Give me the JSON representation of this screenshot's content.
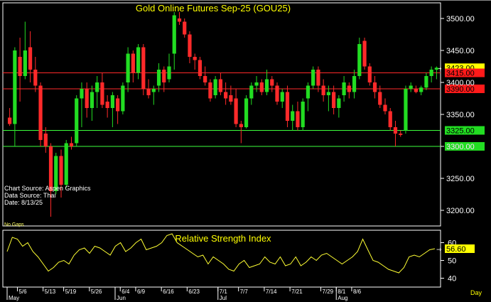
{
  "chart_data": {
    "type": "candlestick",
    "title": "Gold Online Futures Sep-25 (GOU25)",
    "y_axis": {
      "range": [
        3180,
        3520
      ],
      "ticks": [
        3200,
        3250,
        3300,
        3350,
        3400,
        3450,
        3500
      ],
      "labels": [
        "3200.00",
        "3250.00",
        "3300.00",
        "3350.00",
        "3400.00",
        "3450.00",
        "3500.00"
      ]
    },
    "x_axis": {
      "ticks": [
        {
          "label": "5/6",
          "day": 2
        },
        {
          "label": "5/13",
          "day": 7
        },
        {
          "label": "5/19",
          "day": 11
        },
        {
          "label": "5/26",
          "day": 16
        },
        {
          "label": "6/4",
          "day": 22
        },
        {
          "label": "6/9",
          "day": 25
        },
        {
          "label": "6/16",
          "day": 30
        },
        {
          "label": "6/23",
          "day": 35
        },
        {
          "label": "7/1",
          "day": 41
        },
        {
          "label": "7/7",
          "day": 45
        },
        {
          "label": "7/14",
          "day": 50
        },
        {
          "label": "7/21",
          "day": 55
        },
        {
          "label": "7/29",
          "day": 61
        },
        {
          "label": "8/1",
          "day": 64
        },
        {
          "label": "8/6",
          "day": 67
        }
      ],
      "months": [
        {
          "label": "May",
          "day": 0
        },
        {
          "label": "Jun",
          "day": 21
        },
        {
          "label": "Jul",
          "day": 41
        },
        {
          "label": "Aug",
          "day": 64
        }
      ],
      "period_label": "Day"
    },
    "candles": [
      {
        "o": 3345,
        "h": 3360,
        "l": 3332,
        "c": 3335
      },
      {
        "o": 3335,
        "h": 3455,
        "l": 3300,
        "c": 3450
      },
      {
        "o": 3440,
        "h": 3470,
        "l": 3370,
        "c": 3410
      },
      {
        "o": 3410,
        "h": 3495,
        "l": 3405,
        "c": 3450
      },
      {
        "o": 3455,
        "h": 3480,
        "l": 3400,
        "c": 3420
      },
      {
        "o": 3420,
        "h": 3440,
        "l": 3385,
        "c": 3395
      },
      {
        "o": 3395,
        "h": 3400,
        "l": 3300,
        "c": 3310
      },
      {
        "o": 3320,
        "h": 3330,
        "l": 3290,
        "c": 3300
      },
      {
        "o": 3300,
        "h": 3305,
        "l": 3190,
        "c": 3230
      },
      {
        "o": 3230,
        "h": 3290,
        "l": 3225,
        "c": 3285
      },
      {
        "o": 3285,
        "h": 3295,
        "l": 3220,
        "c": 3240
      },
      {
        "o": 3240,
        "h": 3310,
        "l": 3235,
        "c": 3305
      },
      {
        "o": 3305,
        "h": 3315,
        "l": 3295,
        "c": 3300
      },
      {
        "o": 3305,
        "h": 3380,
        "l": 3300,
        "c": 3375
      },
      {
        "o": 3375,
        "h": 3400,
        "l": 3330,
        "c": 3390
      },
      {
        "o": 3390,
        "h": 3400,
        "l": 3345,
        "c": 3360
      },
      {
        "o": 3360,
        "h": 3395,
        "l": 3340,
        "c": 3385
      },
      {
        "o": 3385,
        "h": 3410,
        "l": 3360,
        "c": 3400
      },
      {
        "o": 3400,
        "h": 3415,
        "l": 3360,
        "c": 3365
      },
      {
        "o": 3370,
        "h": 3380,
        "l": 3345,
        "c": 3360
      },
      {
        "o": 3360,
        "h": 3385,
        "l": 3330,
        "c": 3380
      },
      {
        "o": 3375,
        "h": 3380,
        "l": 3335,
        "c": 3355
      },
      {
        "o": 3355,
        "h": 3400,
        "l": 3350,
        "c": 3395
      },
      {
        "o": 3400,
        "h": 3455,
        "l": 3385,
        "c": 3445
      },
      {
        "o": 3445,
        "h": 3450,
        "l": 3400,
        "c": 3415
      },
      {
        "o": 3415,
        "h": 3460,
        "l": 3405,
        "c": 3455
      },
      {
        "o": 3455,
        "h": 3460,
        "l": 3380,
        "c": 3390
      },
      {
        "o": 3390,
        "h": 3405,
        "l": 3375,
        "c": 3380
      },
      {
        "o": 3385,
        "h": 3395,
        "l": 3365,
        "c": 3390
      },
      {
        "o": 3395,
        "h": 3430,
        "l": 3385,
        "c": 3420
      },
      {
        "o": 3420,
        "h": 3425,
        "l": 3385,
        "c": 3400
      },
      {
        "o": 3405,
        "h": 3445,
        "l": 3400,
        "c": 3425
      },
      {
        "o": 3445,
        "h": 3510,
        "l": 3420,
        "c": 3505
      },
      {
        "o": 3500,
        "h": 3510,
        "l": 3490,
        "c": 3495
      },
      {
        "o": 3495,
        "h": 3500,
        "l": 3470,
        "c": 3475
      },
      {
        "o": 3475,
        "h": 3480,
        "l": 3430,
        "c": 3440
      },
      {
        "o": 3440,
        "h": 3445,
        "l": 3420,
        "c": 3435
      },
      {
        "o": 3435,
        "h": 3440,
        "l": 3405,
        "c": 3410
      },
      {
        "o": 3410,
        "h": 3425,
        "l": 3395,
        "c": 3400
      },
      {
        "o": 3400,
        "h": 3405,
        "l": 3370,
        "c": 3375
      },
      {
        "o": 3380,
        "h": 3410,
        "l": 3375,
        "c": 3405
      },
      {
        "o": 3405,
        "h": 3415,
        "l": 3380,
        "c": 3385
      },
      {
        "o": 3385,
        "h": 3400,
        "l": 3365,
        "c": 3375
      },
      {
        "o": 3380,
        "h": 3395,
        "l": 3365,
        "c": 3370
      },
      {
        "o": 3375,
        "h": 3390,
        "l": 3330,
        "c": 3335
      },
      {
        "o": 3335,
        "h": 3340,
        "l": 3305,
        "c": 3330
      },
      {
        "o": 3330,
        "h": 3380,
        "l": 3328,
        "c": 3375
      },
      {
        "o": 3375,
        "h": 3400,
        "l": 3365,
        "c": 3395
      },
      {
        "o": 3395,
        "h": 3410,
        "l": 3385,
        "c": 3400
      },
      {
        "o": 3400,
        "h": 3405,
        "l": 3380,
        "c": 3385
      },
      {
        "o": 3385,
        "h": 3420,
        "l": 3380,
        "c": 3405
      },
      {
        "o": 3405,
        "h": 3410,
        "l": 3385,
        "c": 3395
      },
      {
        "o": 3395,
        "h": 3400,
        "l": 3365,
        "c": 3370
      },
      {
        "o": 3370,
        "h": 3390,
        "l": 3360,
        "c": 3385
      },
      {
        "o": 3385,
        "h": 3395,
        "l": 3330,
        "c": 3340
      },
      {
        "o": 3340,
        "h": 3365,
        "l": 3325,
        "c": 3355
      },
      {
        "o": 3355,
        "h": 3370,
        "l": 3325,
        "c": 3330
      },
      {
        "o": 3330,
        "h": 3375,
        "l": 3325,
        "c": 3370
      },
      {
        "o": 3375,
        "h": 3400,
        "l": 3355,
        "c": 3395
      },
      {
        "o": 3395,
        "h": 3425,
        "l": 3390,
        "c": 3420
      },
      {
        "o": 3420,
        "h": 3425,
        "l": 3385,
        "c": 3395
      },
      {
        "o": 3395,
        "h": 3405,
        "l": 3370,
        "c": 3380
      },
      {
        "o": 3380,
        "h": 3395,
        "l": 3355,
        "c": 3385
      },
      {
        "o": 3385,
        "h": 3395,
        "l": 3350,
        "c": 3360
      },
      {
        "o": 3360,
        "h": 3380,
        "l": 3345,
        "c": 3375
      },
      {
        "o": 3380,
        "h": 3410,
        "l": 3370,
        "c": 3400
      },
      {
        "o": 3395,
        "h": 3400,
        "l": 3375,
        "c": 3385
      },
      {
        "o": 3385,
        "h": 3420,
        "l": 3375,
        "c": 3410
      },
      {
        "o": 3410,
        "h": 3470,
        "l": 3405,
        "c": 3460
      },
      {
        "o": 3465,
        "h": 3470,
        "l": 3420,
        "c": 3425
      },
      {
        "o": 3425,
        "h": 3430,
        "l": 3395,
        "c": 3400
      },
      {
        "o": 3400,
        "h": 3410,
        "l": 3375,
        "c": 3385
      },
      {
        "o": 3385,
        "h": 3395,
        "l": 3360,
        "c": 3365
      },
      {
        "o": 3365,
        "h": 3375,
        "l": 3350,
        "c": 3355
      },
      {
        "o": 3355,
        "h": 3360,
        "l": 3325,
        "c": 3330
      },
      {
        "o": 3330,
        "h": 3340,
        "l": 3300,
        "c": 3320
      },
      {
        "o": 3320,
        "h": 3325,
        "l": 3315,
        "c": 3318
      },
      {
        "o": 3325,
        "h": 3395,
        "l": 3320,
        "c": 3390
      },
      {
        "o": 3390,
        "h": 3400,
        "l": 3385,
        "c": 3395
      },
      {
        "o": 3390,
        "h": 3395,
        "l": 3383,
        "c": 3385
      },
      {
        "o": 3385,
        "h": 3395,
        "l": 3380,
        "c": 3392
      },
      {
        "o": 3392,
        "h": 3415,
        "l": 3388,
        "c": 3410
      },
      {
        "o": 3410,
        "h": 3425,
        "l": 3400,
        "c": 3420
      },
      {
        "o": 3420,
        "h": 3425,
        "l": 3405,
        "c": 3423
      }
    ],
    "levels": [
      {
        "value": 3423.0,
        "label": "3423.00",
        "line_color": "",
        "label_bg": "#ffff00",
        "label_fg": "#000000"
      },
      {
        "value": 3415.0,
        "label": "3415.00",
        "line_color": "#ff2a2a",
        "label_bg": "#ff1a1a",
        "label_fg": "#000000"
      },
      {
        "value": 3390.0,
        "label": "3390.00",
        "line_color": "#ff2a2a",
        "label_bg": "#ff1a1a",
        "label_fg": "#000000"
      },
      {
        "value": 3325.0,
        "label": "3325.00",
        "line_color": "#3cff3c",
        "label_bg": "#22dd22",
        "label_fg": "#000000"
      },
      {
        "value": 3300.0,
        "label": "3300.00",
        "line_color": "#3cff3c",
        "label_bg": "#22dd22",
        "label_fg": "#000000"
      }
    ],
    "rsi": {
      "title": "Relative Strength Index",
      "y_range": [
        35,
        67
      ],
      "ticks": [
        40,
        50,
        60
      ],
      "last_value": 56.6,
      "last_label": "56.60",
      "values": [
        55,
        63,
        62,
        58,
        60,
        55,
        52,
        48,
        44,
        46,
        49,
        50,
        48,
        53,
        56,
        57,
        54,
        58,
        57,
        55,
        53,
        58,
        60,
        55,
        57,
        60,
        62,
        56,
        57,
        58,
        60,
        64,
        65,
        60,
        58,
        56,
        54,
        52,
        53,
        48,
        52,
        50,
        48,
        45,
        44,
        48,
        50,
        46,
        47,
        48,
        52,
        49,
        48,
        52,
        47,
        48,
        52,
        47,
        49,
        52,
        50,
        53,
        54,
        52,
        50,
        48,
        50,
        52,
        55,
        62,
        56,
        50,
        49,
        47,
        45,
        44,
        43,
        46,
        52,
        53,
        52,
        54,
        56,
        56.6
      ]
    },
    "info": {
      "chart_source": "Chart Source:  Aspen Graphics",
      "data_source": "Data Source:  Thai",
      "date": "Date:  8/13/25",
      "gaps": "No Gaps"
    },
    "colors": {
      "up": "#22dd22",
      "down": "#ff2a2a",
      "title": "#ffff00",
      "rsi_line": "#ffff33",
      "text": "#ffffff",
      "frame": "#ffffff",
      "background": "#000000"
    }
  }
}
